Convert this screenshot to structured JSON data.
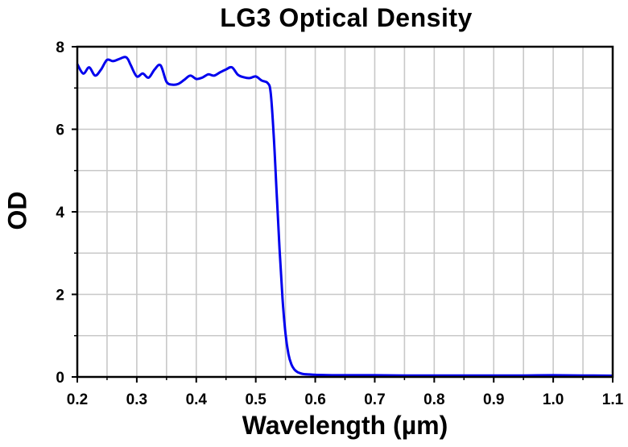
{
  "chart_data": {
    "type": "line",
    "title": "LG3 Optical Density",
    "xlabel": "Wavelength (µm)",
    "ylabel": "OD",
    "xlim": [
      0.2,
      1.1
    ],
    "ylim": [
      0,
      8
    ],
    "x_ticks": [
      "0.2",
      "0.3",
      "0.4",
      "0.5",
      "0.6",
      "0.7",
      "0.8",
      "0.9",
      "1.0",
      "1.1"
    ],
    "y_ticks": [
      "0",
      "2",
      "4",
      "6",
      "8"
    ],
    "grid": true,
    "legend": "none",
    "series": [
      {
        "color": "#0000ee",
        "x": [
          0.2,
          0.21,
          0.22,
          0.23,
          0.24,
          0.25,
          0.26,
          0.27,
          0.28,
          0.285,
          0.29,
          0.3,
          0.31,
          0.32,
          0.33,
          0.34,
          0.35,
          0.36,
          0.37,
          0.38,
          0.39,
          0.4,
          0.41,
          0.42,
          0.43,
          0.44,
          0.45,
          0.46,
          0.47,
          0.48,
          0.49,
          0.5,
          0.51,
          0.52,
          0.525,
          0.53,
          0.535,
          0.54,
          0.545,
          0.55,
          0.555,
          0.56,
          0.565,
          0.57,
          0.575,
          0.58,
          0.59,
          0.6,
          0.62,
          0.65,
          0.7,
          0.75,
          0.8,
          0.85,
          0.9,
          0.95,
          1.0,
          1.05,
          1.1
        ],
        "y": [
          7.58,
          7.35,
          7.5,
          7.3,
          7.45,
          7.68,
          7.65,
          7.7,
          7.75,
          7.7,
          7.55,
          7.28,
          7.35,
          7.25,
          7.45,
          7.55,
          7.15,
          7.08,
          7.1,
          7.2,
          7.3,
          7.22,
          7.25,
          7.33,
          7.3,
          7.38,
          7.45,
          7.5,
          7.32,
          7.26,
          7.24,
          7.28,
          7.18,
          7.12,
          6.9,
          5.9,
          4.5,
          3.1,
          1.9,
          1.05,
          0.55,
          0.3,
          0.18,
          0.12,
          0.09,
          0.07,
          0.06,
          0.05,
          0.045,
          0.04,
          0.04,
          0.035,
          0.035,
          0.035,
          0.035,
          0.035,
          0.04,
          0.035,
          0.03
        ]
      }
    ]
  }
}
